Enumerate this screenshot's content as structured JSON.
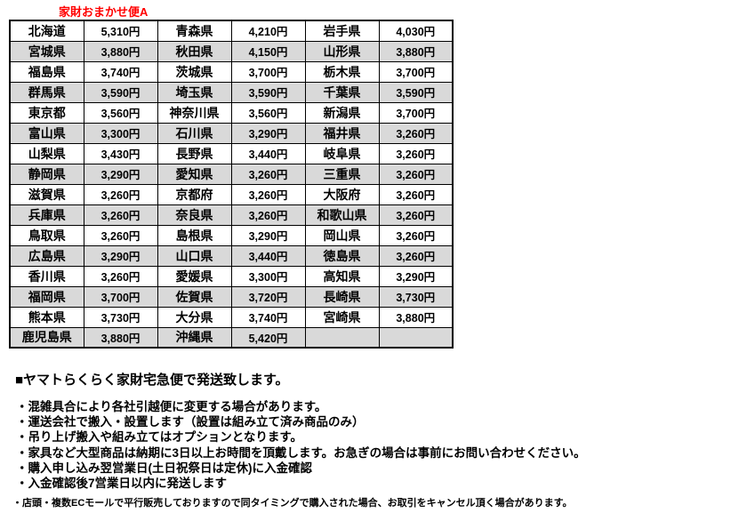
{
  "page": {
    "title": "家財おまかせ便A"
  },
  "colors": {
    "title_red": "#ff0000",
    "shaded_row": "#d9d9d9",
    "border": "#000000"
  },
  "fee_table": {
    "columns": [
      "prefecture",
      "price",
      "prefecture",
      "price",
      "prefecture",
      "price"
    ],
    "rows": [
      [
        "北海道",
        "5,310円",
        "青森県",
        "4,210円",
        "岩手県",
        "4,030円"
      ],
      [
        "宮城県",
        "3,880円",
        "秋田県",
        "4,150円",
        "山形県",
        "3,880円"
      ],
      [
        "福島県",
        "3,740円",
        "茨城県",
        "3,700円",
        "栃木県",
        "3,700円"
      ],
      [
        "群馬県",
        "3,590円",
        "埼玉県",
        "3,590円",
        "千葉県",
        "3,590円"
      ],
      [
        "東京都",
        "3,560円",
        "神奈川県",
        "3,560円",
        "新潟県",
        "3,700円"
      ],
      [
        "富山県",
        "3,300円",
        "石川県",
        "3,290円",
        "福井県",
        "3,260円"
      ],
      [
        "山梨県",
        "3,430円",
        "長野県",
        "3,440円",
        "岐阜県",
        "3,260円"
      ],
      [
        "静岡県",
        "3,290円",
        "愛知県",
        "3,260円",
        "三重県",
        "3,260円"
      ],
      [
        "滋賀県",
        "3,260円",
        "京都府",
        "3,260円",
        "大阪府",
        "3,260円"
      ],
      [
        "兵庫県",
        "3,260円",
        "奈良県",
        "3,260円",
        "和歌山県",
        "3,260円"
      ],
      [
        "鳥取県",
        "3,260円",
        "島根県",
        "3,290円",
        "岡山県",
        "3,260円"
      ],
      [
        "広島県",
        "3,290円",
        "山口県",
        "3,440円",
        "徳島県",
        "3,260円"
      ],
      [
        "香川県",
        "3,260円",
        "愛媛県",
        "3,300円",
        "高知県",
        "3,290円"
      ],
      [
        "福岡県",
        "3,700円",
        "佐賀県",
        "3,720円",
        "長崎県",
        "3,730円"
      ],
      [
        "熊本県",
        "3,730円",
        "大分県",
        "3,740円",
        "宮崎県",
        "3,880円"
      ],
      [
        "鹿児島県",
        "3,880円",
        "沖縄県",
        "5,420円",
        "",
        ""
      ]
    ]
  },
  "notes": {
    "heading": "■ヤマトらくらく家財宅急便で発送致します。",
    "bullets": [
      "・混雑具合により各社引越便に変更する場合があります。",
      "・運送会社で搬入・設置します（設置は組み立て済み商品のみ）",
      "・吊り上げ搬入や組み立てはオプションとなります。",
      "・家具など大型商品は納期に3日以上お時間を頂戴します。お急ぎの場合は事前にお問い合わせください。",
      "・購入申し込み翌営業日(土日祝祭日は定休)に入金確認",
      "・入金確認後7営業日以内に発送します"
    ],
    "footnote": "・店頭・複数ECモールで平行販売しておりますので同タイミングで購入された場合、お取引をキャンセル頂く場合があります。"
  }
}
